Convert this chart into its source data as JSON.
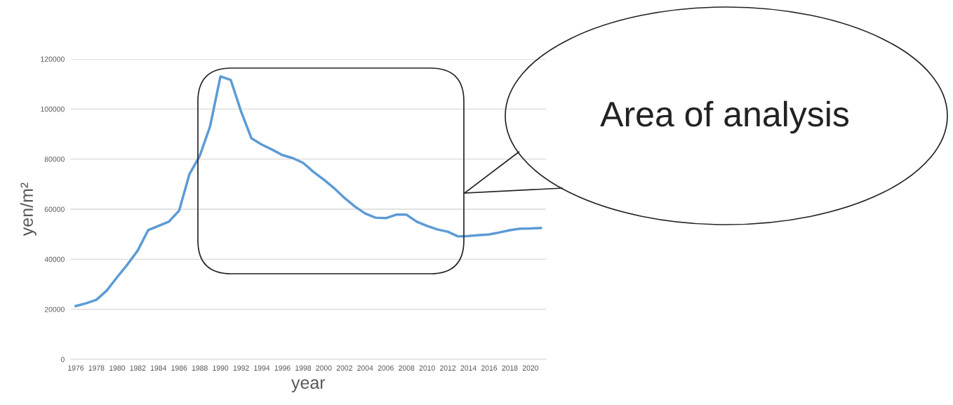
{
  "chart_data": {
    "type": "line",
    "xlabel": "year",
    "ylabel": "yen/m²",
    "categories": [
      "1976",
      null,
      "1978",
      null,
      "1980",
      null,
      "1982",
      null,
      "1984",
      null,
      "1986",
      null,
      "1988",
      null,
      "1990",
      null,
      "1992",
      null,
      "1994",
      null,
      "1996",
      null,
      "1998",
      null,
      "2000",
      null,
      "2002",
      null,
      "2004",
      null,
      "2006",
      null,
      "2008",
      null,
      "2010",
      null,
      "2012",
      null,
      "2014",
      null,
      "2016",
      null,
      "2018",
      null,
      "2020",
      null
    ],
    "series": [
      {
        "color": "#5b9bd5",
        "values": [
          21300,
          22400,
          23800,
          27500,
          32800,
          37900,
          43500,
          51600,
          53300,
          55000,
          59400,
          74000,
          81300,
          93100,
          113000,
          111600,
          99000,
          88300,
          85800,
          83800,
          81600,
          80400,
          78500,
          74900,
          71800,
          68400,
          64500,
          61100,
          58300,
          56600,
          56400,
          57800,
          57800,
          55000,
          53300,
          51900,
          51000,
          49100,
          49300,
          49600,
          49900,
          50700,
          51600,
          52200,
          52300,
          52500
        ]
      }
    ],
    "ylim": [
      0,
      120000
    ],
    "yticks": [
      0,
      20000,
      40000,
      60000,
      80000,
      100000,
      120000
    ],
    "grid": "y",
    "legend": false,
    "marker": "none",
    "line_style": "solid",
    "annotations": [
      "Area of analysis"
    ]
  }
}
